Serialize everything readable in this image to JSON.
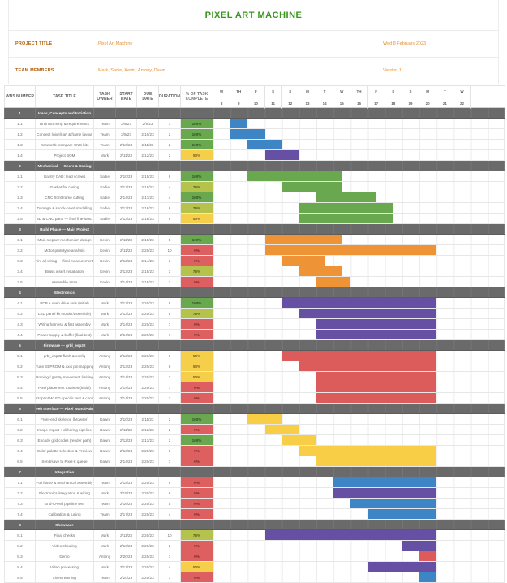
{
  "title": "PIXEL ART MACHINE",
  "info": {
    "project_label": "PROJECT TITLE",
    "project_value": "Pixel Art Machine",
    "project_date": "Wed 8 February 2023",
    "team_label": "TEAM MEMBERS",
    "team_value": "Mark, Sadie, Kevin, Antony, Dawn",
    "team_extra": "Version 1"
  },
  "colors": {
    "title_green": "#38961d",
    "label_orange": "#b45f06",
    "value_orange": "#e69138",
    "section_gray": "#6a6a6a",
    "bar_blue": "#3e85c6",
    "bar_green": "#6aa84f",
    "bar_orange": "#ee9336",
    "bar_purple": "#6650a4",
    "bar_red": "#dc5c5c",
    "bar_yellow": "#f8ce46",
    "pct_100": "#69a84f",
    "pct_75": "#b5c24b",
    "pct_50": "#f5ce4a",
    "pct_0": "#dd5f5f"
  },
  "table": {
    "headers": [
      "WBS NUMBER",
      "TASK TITLE",
      "TASK OWNER",
      "START DATE",
      "DUE DATE",
      "DURATION",
      "% OF TASK COMPLETE"
    ],
    "day_letters": [
      "W",
      "TH",
      "F",
      "S",
      "S",
      "M",
      "T",
      "W",
      "TH",
      "F",
      "S",
      "S",
      "M",
      "T",
      "W",
      "",
      ""
    ],
    "day_numbers": [
      "8",
      "9",
      "10",
      "11",
      "12",
      "13",
      "14",
      "15",
      "16",
      "17",
      "18",
      "19",
      "20",
      "21",
      "22",
      "",
      ""
    ]
  },
  "sections": [
    {
      "wbs": "1",
      "title": "Ideas, Concepts and Initiation",
      "rows": [
        {
          "wbs": "1.1",
          "title": "Brainstorming & requirements",
          "owner": "Team",
          "start": "2/9/23",
          "due": "2/9/23",
          "duration": "1",
          "pct": "100%",
          "pct_color": "#69a84f",
          "bar": {
            "start": 1,
            "span": 1,
            "color": "#3e85c6"
          }
        },
        {
          "wbs": "1.2",
          "title": "Concept (pixel) art & frame layout",
          "owner": "Team",
          "start": "2/9/23",
          "due": "2/10/23",
          "duration": "2",
          "pct": "100%",
          "pct_color": "#69a84f",
          "bar": {
            "start": 1,
            "span": 2,
            "color": "#3e85c6"
          }
        },
        {
          "wbs": "1.3",
          "title": "Research: compare CNC bits",
          "owner": "Team",
          "start": "2/10/23",
          "due": "2/11/23",
          "duration": "2",
          "pct": "100%",
          "pct_color": "#69a84f",
          "bar": {
            "start": 2,
            "span": 2,
            "color": "#3e85c6"
          }
        },
        {
          "wbs": "1.4",
          "title": "Project BOM",
          "owner": "Mark",
          "start": "2/11/23",
          "due": "2/12/23",
          "duration": "2",
          "pct": "50%",
          "pct_color": "#f5ce4a",
          "bar": {
            "start": 3,
            "span": 2,
            "color": "#6650a4"
          }
        }
      ]
    },
    {
      "wbs": "2",
      "title": "Mechanical — Gears & Casing",
      "rows": [
        {
          "wbs": "2.1",
          "title": "Gantry CAD: lead screws",
          "owner": "Sadie",
          "start": "2/10/23",
          "due": "2/15/23",
          "duration": "6",
          "pct": "100%",
          "pct_color": "#69a84f",
          "bar": {
            "start": 2,
            "span": 5.5,
            "color": "#6aa84f"
          }
        },
        {
          "wbs": "2.2",
          "title": "Gasket for casing",
          "owner": "Sadie",
          "start": "2/12/23",
          "due": "2/15/23",
          "duration": "4",
          "pct": "75%",
          "pct_color": "#b5c24b",
          "bar": {
            "start": 4,
            "span": 3.5,
            "color": "#6aa84f"
          }
        },
        {
          "wbs": "2.3",
          "title": "CNC front frame cutting",
          "owner": "Sadie",
          "start": "2/14/23",
          "due": "2/17/23",
          "duration": "4",
          "pct": "100%",
          "pct_color": "#69a84f",
          "bar": {
            "start": 6,
            "span": 3.5,
            "color": "#6aa84f"
          }
        },
        {
          "wbs": "2.4",
          "title": "Damage & shock-proof modelling",
          "owner": "Sadie",
          "start": "2/13/23",
          "due": "2/18/23",
          "duration": "6",
          "pct": "75%",
          "pct_color": "#b5c24b",
          "bar": {
            "start": 5,
            "span": 5.5,
            "color": "#6aa84f"
          }
        },
        {
          "wbs": "2.5",
          "title": "3D & CNC parts — final fine-sand",
          "owner": "Sadie",
          "start": "2/13/23",
          "due": "2/18/23",
          "duration": "6",
          "pct": "50%",
          "pct_color": "#f5ce4a",
          "bar": {
            "start": 5,
            "span": 5.5,
            "color": "#6aa84f"
          }
        }
      ]
    },
    {
      "wbs": "3",
      "title": "Build Phase — Main Project",
      "rows": [
        {
          "wbs": "3.1",
          "title": "Main stepper mechanism design",
          "owner": "Kevin",
          "start": "2/11/23",
          "due": "2/15/23",
          "duration": "5",
          "pct": "100%",
          "pct_color": "#69a84f",
          "bar": {
            "start": 3,
            "span": 4.5,
            "color": "#ee9336"
          }
        },
        {
          "wbs": "3.2",
          "title": "Motor prototype analysis",
          "owner": "Kevin",
          "start": "2/11/23",
          "due": "2/20/23",
          "duration": "10",
          "pct": "0%",
          "pct_color": "#dd5f5f",
          "bar": {
            "start": 3,
            "span": 10,
            "color": "#ee9336"
          }
        },
        {
          "wbs": "3.3",
          "title": "Print all wiring — final measurements",
          "owner": "Kevin",
          "start": "2/12/23",
          "due": "2/14/23",
          "duration": "3",
          "pct": "0%",
          "pct_color": "#dd5f5f",
          "bar": {
            "start": 4,
            "span": 2.5,
            "color": "#ee9336"
          }
        },
        {
          "wbs": "3.4",
          "title": "Brass insert installation",
          "owner": "Kevin",
          "start": "2/13/23",
          "due": "2/15/23",
          "duration": "3",
          "pct": "75%",
          "pct_color": "#b5c24b",
          "bar": {
            "start": 5,
            "span": 2.5,
            "color": "#ee9336"
          }
        },
        {
          "wbs": "3.5",
          "title": "Assemble arms",
          "owner": "Kevin",
          "start": "2/14/23",
          "due": "2/15/23",
          "duration": "2",
          "pct": "0%",
          "pct_color": "#dd5f5f",
          "bar": {
            "start": 6,
            "span": 2,
            "color": "#ee9336"
          }
        }
      ]
    },
    {
      "wbs": "4",
      "title": "Electronics",
      "rows": [
        {
          "wbs": "4.1",
          "title": "PCB + main drive rails (initial)",
          "owner": "Mark",
          "start": "2/12/23",
          "due": "2/20/23",
          "duration": "9",
          "pct": "100%",
          "pct_color": "#69a84f",
          "bar": {
            "start": 4,
            "span": 9,
            "color": "#6650a4"
          }
        },
        {
          "wbs": "4.2",
          "title": "LED panel kit (solder/assemble)",
          "owner": "Mark",
          "start": "2/13/23",
          "due": "2/20/23",
          "duration": "8",
          "pct": "75%",
          "pct_color": "#b5c24b",
          "bar": {
            "start": 5,
            "span": 8,
            "color": "#6650a4"
          }
        },
        {
          "wbs": "4.3",
          "title": "Wiring harness & first assembly",
          "owner": "Mark",
          "start": "2/14/23",
          "due": "2/20/23",
          "duration": "7",
          "pct": "0%",
          "pct_color": "#dd5f5f",
          "bar": {
            "start": 6,
            "span": 7,
            "color": "#6650a4"
          }
        },
        {
          "wbs": "4.4",
          "title": "Power supply & buffer (final test)",
          "owner": "Mark",
          "start": "2/14/23",
          "due": "2/20/23",
          "duration": "7",
          "pct": "0%",
          "pct_color": "#dd5f5f",
          "bar": {
            "start": 6,
            "span": 7,
            "color": "#6650a4"
          }
        }
      ]
    },
    {
      "wbs": "5",
      "title": "Firmware — grbl_esp32",
      "rows": [
        {
          "wbs": "5.1",
          "title": "grbl_esp32 flash & config",
          "owner": "Antony",
          "start": "2/12/23",
          "due": "2/20/23",
          "duration": "9",
          "pct": "50%",
          "pct_color": "#f5ce4a",
          "bar": {
            "start": 4,
            "span": 9,
            "color": "#dc5c5c"
          }
        },
        {
          "wbs": "5.2",
          "title": "Tune EEPROM & axis pin mapping",
          "owner": "Antony",
          "start": "2/13/23",
          "due": "2/20/23",
          "duration": "8",
          "pct": "50%",
          "pct_color": "#f5ce4a",
          "bar": {
            "start": 5,
            "span": 8,
            "color": "#dc5c5c"
          }
        },
        {
          "wbs": "5.3",
          "title": "Homing / gantry movement limiting",
          "owner": "Antony",
          "start": "2/14/23",
          "due": "2/20/23",
          "duration": "7",
          "pct": "50%",
          "pct_color": "#f5ce4a",
          "bar": {
            "start": 6,
            "span": 7,
            "color": "#dc5c5c"
          }
        },
        {
          "wbs": "5.4",
          "title": "Pixel placement routines (initial)",
          "owner": "Antony",
          "start": "2/14/23",
          "due": "2/20/23",
          "duration": "7",
          "pct": "0%",
          "pct_color": "#dd5f5f",
          "bar": {
            "start": 6,
            "span": 7,
            "color": "#dc5c5c"
          }
        },
        {
          "wbs": "5.5",
          "title": "Octoprint/WLED specific test & config",
          "owner": "Antony",
          "start": "2/14/23",
          "due": "2/20/23",
          "duration": "7",
          "pct": "0%",
          "pct_color": "#dd5f5f",
          "bar": {
            "start": 6,
            "span": 7,
            "color": "#dc5c5c"
          }
        }
      ]
    },
    {
      "wbs": "6",
      "title": "Web Interface — Pixel Wand/Paint",
      "rows": [
        {
          "wbs": "6.1",
          "title": "Front-end skeleton (browser)",
          "owner": "Dawn",
          "start": "2/10/23",
          "due": "2/11/23",
          "duration": "2",
          "pct": "100%",
          "pct_color": "#69a84f",
          "bar": {
            "start": 2,
            "span": 2,
            "color": "#f8ce46"
          }
        },
        {
          "wbs": "6.2",
          "title": "Image import + dithering pipeline",
          "owner": "Dawn",
          "start": "2/11/23",
          "due": "2/12/23",
          "duration": "2",
          "pct": "0%",
          "pct_color": "#dd5f5f",
          "bar": {
            "start": 3,
            "span": 2,
            "color": "#f8ce46"
          }
        },
        {
          "wbs": "6.3",
          "title": "Encode grid codes (render path)",
          "owner": "Dawn",
          "start": "2/12/23",
          "due": "2/13/23",
          "duration": "2",
          "pct": "100%",
          "pct_color": "#69a84f",
          "bar": {
            "start": 4,
            "span": 2,
            "color": "#f8ce46"
          }
        },
        {
          "wbs": "6.4",
          "title": "Color palette selection & Preview",
          "owner": "Dawn",
          "start": "2/13/23",
          "due": "2/20/23",
          "duration": "8",
          "pct": "0%",
          "pct_color": "#dd5f5f",
          "bar": {
            "start": 5,
            "span": 8,
            "color": "#f8ce46"
          }
        },
        {
          "wbs": "6.5",
          "title": "Send/save to Pixel-It queue",
          "owner": "Dawn",
          "start": "2/14/23",
          "due": "2/20/23",
          "duration": "7",
          "pct": "0%",
          "pct_color": "#dd5f5f",
          "bar": {
            "start": 6,
            "span": 7,
            "color": "#f8ce46"
          }
        }
      ]
    },
    {
      "wbs": "7",
      "title": "Integration",
      "rows": [
        {
          "wbs": "7.1",
          "title": "Full frame & mechanical assembly",
          "owner": "Team",
          "start": "2/15/23",
          "due": "2/20/23",
          "duration": "6",
          "pct": "0%",
          "pct_color": "#dd5f5f",
          "bar": {
            "start": 7,
            "span": 6,
            "color": "#3e85c6"
          }
        },
        {
          "wbs": "7.2",
          "title": "Electronics integration & wiring",
          "owner": "Mark",
          "start": "2/15/23",
          "due": "2/20/23",
          "duration": "6",
          "pct": "0%",
          "pct_color": "#dd5f5f",
          "bar": {
            "start": 7,
            "span": 6,
            "color": "#6650a4"
          }
        },
        {
          "wbs": "7.3",
          "title": "End-to-end pipeline test",
          "owner": "Team",
          "start": "2/16/23",
          "due": "2/20/23",
          "duration": "5",
          "pct": "0%",
          "pct_color": "#dd5f5f",
          "bar": {
            "start": 8,
            "span": 5,
            "color": "#3e85c6"
          }
        },
        {
          "wbs": "7.4",
          "title": "Calibration & tuning",
          "owner": "Team",
          "start": "2/17/23",
          "due": "2/20/23",
          "duration": "4",
          "pct": "0%",
          "pct_color": "#dd5f5f",
          "bar": {
            "start": 9,
            "span": 4,
            "color": "#3e85c6"
          }
        }
      ]
    },
    {
      "wbs": "8",
      "title": "Showcase",
      "rows": [
        {
          "wbs": "8.1",
          "title": "Final checks",
          "owner": "Mark",
          "start": "2/11/23",
          "due": "2/20/23",
          "duration": "10",
          "pct": "75%",
          "pct_color": "#b5c24b",
          "bar": {
            "start": 3,
            "span": 10,
            "color": "#6650a4"
          }
        },
        {
          "wbs": "8.2",
          "title": "Video shooting",
          "owner": "Mark",
          "start": "2/19/23",
          "due": "2/20/23",
          "duration": "2",
          "pct": "0%",
          "pct_color": "#dd5f5f",
          "bar": {
            "start": 11,
            "span": 2,
            "color": "#6650a4"
          }
        },
        {
          "wbs": "8.3",
          "title": "Demo",
          "owner": "Antony",
          "start": "2/20/23",
          "due": "2/20/23",
          "duration": "1",
          "pct": "0%",
          "pct_color": "#dd5f5f",
          "bar": {
            "start": 12,
            "span": 1,
            "color": "#dc5c5c"
          }
        },
        {
          "wbs": "8.4",
          "title": "Video processing",
          "owner": "Mark",
          "start": "2/17/23",
          "due": "2/20/23",
          "duration": "4",
          "pct": "50%",
          "pct_color": "#f5ce4a",
          "bar": {
            "start": 9,
            "span": 4,
            "color": "#6650a4"
          }
        },
        {
          "wbs": "8.5",
          "title": "Livestreaming",
          "owner": "Team",
          "start": "2/20/23",
          "due": "2/20/23",
          "duration": "1",
          "pct": "0%",
          "pct_color": "#dd5f5f",
          "bar": {
            "start": 12,
            "span": 1,
            "color": "#3e85c6"
          }
        }
      ]
    }
  ]
}
